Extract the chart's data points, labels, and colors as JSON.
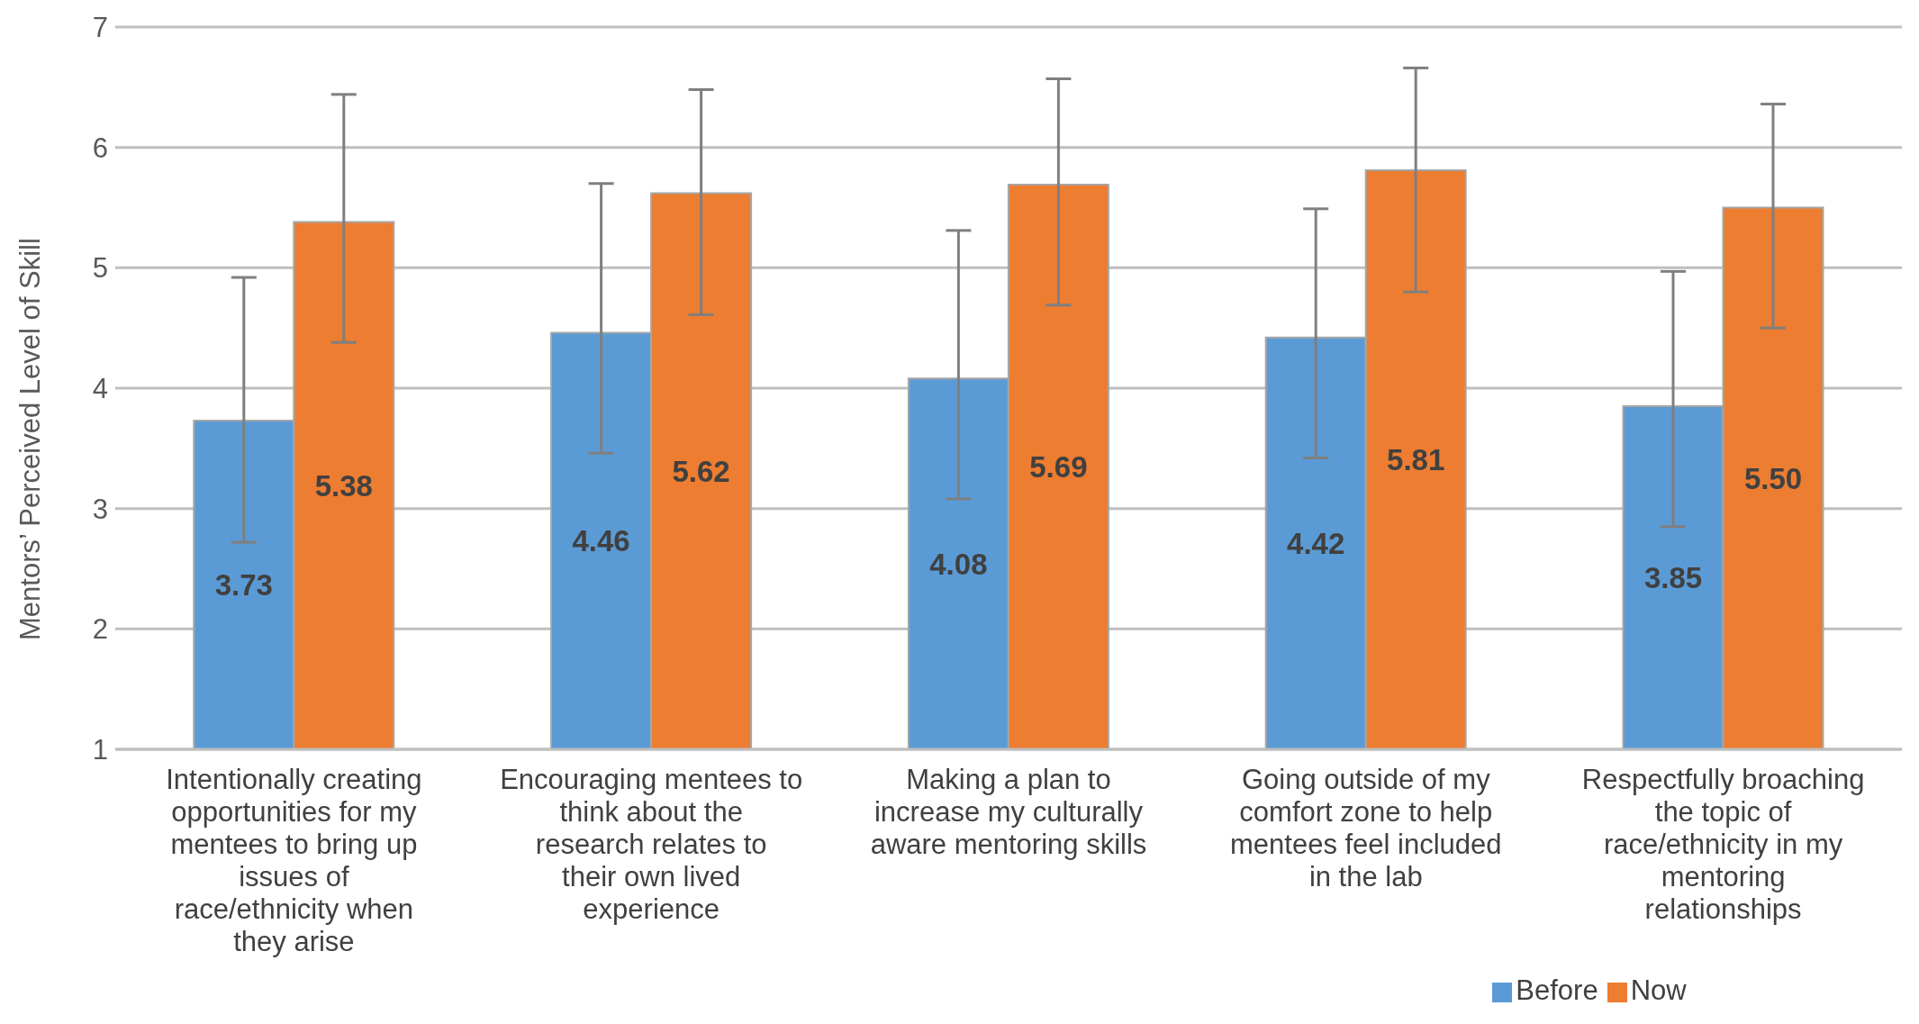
{
  "chart_data": {
    "type": "bar",
    "ylabel": "Mentors’ Perceived Level of Skill",
    "categories": [
      "Intentionally creating opportunities for my mentees to bring up issues of race/ethnicity when they arise",
      "Encouraging mentees to think about the research relates to their own lived experience",
      "Making a plan to increase my culturally aware mentoring skills",
      "Going outside of my comfort zone to help mentees feel included in the lab",
      "Respectfully broaching the topic of race/ethnicity in my mentoring relationships"
    ],
    "series": [
      {
        "name": "Before",
        "color": "#5b9bd5",
        "values": [
          3.73,
          4.46,
          4.08,
          4.42,
          3.85
        ],
        "value_labels": [
          "3.73",
          "4.46",
          "4.08",
          "4.42",
          "3.85"
        ],
        "errors": [
          [
            2.72,
            4.92
          ],
          [
            3.46,
            5.7
          ],
          [
            3.08,
            5.31
          ],
          [
            3.42,
            5.49
          ],
          [
            2.85,
            4.97
          ]
        ]
      },
      {
        "name": "Now",
        "color": "#ed7d31",
        "values": [
          5.38,
          5.62,
          5.69,
          5.81,
          5.5
        ],
        "value_labels": [
          "5.38",
          "5.62",
          "5.69",
          "5.81",
          "5.50"
        ],
        "errors": [
          [
            4.38,
            6.44
          ],
          [
            4.61,
            6.48
          ],
          [
            4.69,
            6.57
          ],
          [
            4.8,
            6.66
          ],
          [
            4.5,
            6.36
          ]
        ]
      }
    ],
    "ylim": [
      1,
      7
    ],
    "yticks": [
      1,
      2,
      3,
      4,
      5,
      6,
      7
    ],
    "grid": "y",
    "legend": "bottom"
  }
}
